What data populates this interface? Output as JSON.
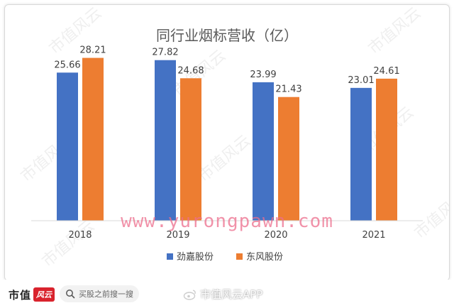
{
  "chart_data": {
    "type": "bar",
    "title": "同行业烟标营收（亿）",
    "categories": [
      "2018",
      "2019",
      "2020",
      "2021"
    ],
    "series": [
      {
        "name": "劲嘉股份",
        "values": [
          25.66,
          27.82,
          23.99,
          23.01
        ],
        "color": "#4472c4"
      },
      {
        "name": "东风股份",
        "values": [
          28.21,
          24.68,
          21.43,
          24.61
        ],
        "color": "#ed7d31"
      }
    ],
    "ylim": [
      0,
      30
    ],
    "grid": false,
    "legend": "bottom",
    "value_labels": true
  },
  "overlay_watermark": "www.yurongpawn.com",
  "background_watermark": "市值风云",
  "footer": {
    "logo_text": "市值",
    "logo_badge": "风云",
    "search_placeholder": "买股之前搜一搜",
    "search_icon": "search-icon",
    "weibo_icon": "weibo-icon",
    "weibo_text": "市值风云APP"
  }
}
